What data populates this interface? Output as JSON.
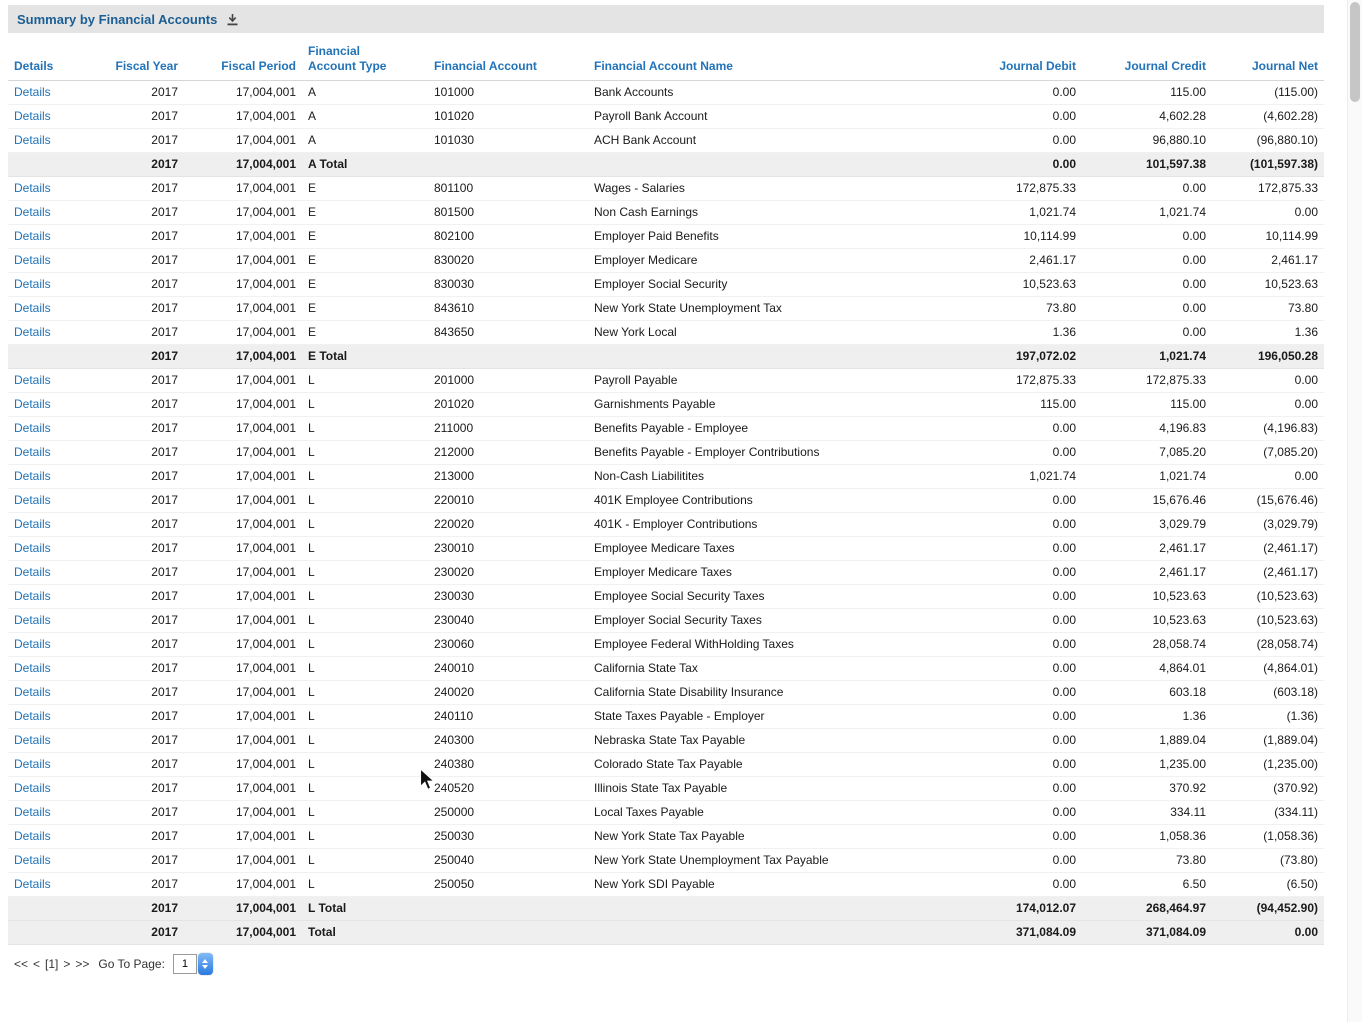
{
  "title": "Summary by Financial Accounts",
  "table": {
    "columns": [
      "Details",
      "Fiscal Year",
      "Fiscal Period",
      "Financial Account Type",
      "Financial Account",
      "Financial Account Name",
      "Journal Debit",
      "Journal Credit",
      "Journal Net"
    ],
    "rows": [
      {
        "details": "Details",
        "fiscal_year": "2017",
        "fiscal_period": "17,004,001",
        "account_type": "A",
        "account": "101000",
        "account_name": "Bank Accounts",
        "debit": "0.00",
        "credit": "115.00",
        "net": "(115.00)"
      },
      {
        "details": "Details",
        "fiscal_year": "2017",
        "fiscal_period": "17,004,001",
        "account_type": "A",
        "account": "101020",
        "account_name": "Payroll Bank Account",
        "debit": "0.00",
        "credit": "4,602.28",
        "net": "(4,602.28)"
      },
      {
        "details": "Details",
        "fiscal_year": "2017",
        "fiscal_period": "17,004,001",
        "account_type": "A",
        "account": "101030",
        "account_name": "ACH Bank Account",
        "debit": "0.00",
        "credit": "96,880.10",
        "net": "(96,880.10)"
      },
      {
        "total": true,
        "fiscal_year": "2017",
        "fiscal_period": "17,004,001",
        "account_type": "A Total",
        "debit": "0.00",
        "credit": "101,597.38",
        "net": "(101,597.38)"
      },
      {
        "details": "Details",
        "fiscal_year": "2017",
        "fiscal_period": "17,004,001",
        "account_type": "E",
        "account": "801100",
        "account_name": "Wages - Salaries",
        "debit": "172,875.33",
        "credit": "0.00",
        "net": "172,875.33"
      },
      {
        "details": "Details",
        "fiscal_year": "2017",
        "fiscal_period": "17,004,001",
        "account_type": "E",
        "account": "801500",
        "account_name": "Non Cash Earnings",
        "debit": "1,021.74",
        "credit": "1,021.74",
        "net": "0.00"
      },
      {
        "details": "Details",
        "fiscal_year": "2017",
        "fiscal_period": "17,004,001",
        "account_type": "E",
        "account": "802100",
        "account_name": "Employer Paid Benefits",
        "debit": "10,114.99",
        "credit": "0.00",
        "net": "10,114.99"
      },
      {
        "details": "Details",
        "fiscal_year": "2017",
        "fiscal_period": "17,004,001",
        "account_type": "E",
        "account": "830020",
        "account_name": "Employer Medicare",
        "debit": "2,461.17",
        "credit": "0.00",
        "net": "2,461.17"
      },
      {
        "details": "Details",
        "fiscal_year": "2017",
        "fiscal_period": "17,004,001",
        "account_type": "E",
        "account": "830030",
        "account_name": "Employer Social Security",
        "debit": "10,523.63",
        "credit": "0.00",
        "net": "10,523.63"
      },
      {
        "details": "Details",
        "fiscal_year": "2017",
        "fiscal_period": "17,004,001",
        "account_type": "E",
        "account": "843610",
        "account_name": "New York State Unemployment Tax",
        "debit": "73.80",
        "credit": "0.00",
        "net": "73.80"
      },
      {
        "details": "Details",
        "fiscal_year": "2017",
        "fiscal_period": "17,004,001",
        "account_type": "E",
        "account": "843650",
        "account_name": "New York Local",
        "debit": "1.36",
        "credit": "0.00",
        "net": "1.36"
      },
      {
        "total": true,
        "fiscal_year": "2017",
        "fiscal_period": "17,004,001",
        "account_type": "E Total",
        "debit": "197,072.02",
        "credit": "1,021.74",
        "net": "196,050.28"
      },
      {
        "details": "Details",
        "fiscal_year": "2017",
        "fiscal_period": "17,004,001",
        "account_type": "L",
        "account": "201000",
        "account_name": "Payroll Payable",
        "debit": "172,875.33",
        "credit": "172,875.33",
        "net": "0.00"
      },
      {
        "details": "Details",
        "fiscal_year": "2017",
        "fiscal_period": "17,004,001",
        "account_type": "L",
        "account": "201020",
        "account_name": "Garnishments Payable",
        "debit": "115.00",
        "credit": "115.00",
        "net": "0.00"
      },
      {
        "details": "Details",
        "fiscal_year": "2017",
        "fiscal_period": "17,004,001",
        "account_type": "L",
        "account": "211000",
        "account_name": "Benefits Payable - Employee",
        "debit": "0.00",
        "credit": "4,196.83",
        "net": "(4,196.83)"
      },
      {
        "details": "Details",
        "fiscal_year": "2017",
        "fiscal_period": "17,004,001",
        "account_type": "L",
        "account": "212000",
        "account_name": "Benefits Payable - Employer Contributions",
        "debit": "0.00",
        "credit": "7,085.20",
        "net": "(7,085.20)"
      },
      {
        "details": "Details",
        "fiscal_year": "2017",
        "fiscal_period": "17,004,001",
        "account_type": "L",
        "account": "213000",
        "account_name": "Non-Cash Liabilitites",
        "debit": "1,021.74",
        "credit": "1,021.74",
        "net": "0.00"
      },
      {
        "details": "Details",
        "fiscal_year": "2017",
        "fiscal_period": "17,004,001",
        "account_type": "L",
        "account": "220010",
        "account_name": "401K Employee Contributions",
        "debit": "0.00",
        "credit": "15,676.46",
        "net": "(15,676.46)"
      },
      {
        "details": "Details",
        "fiscal_year": "2017",
        "fiscal_period": "17,004,001",
        "account_type": "L",
        "account": "220020",
        "account_name": "401K - Employer Contributions",
        "debit": "0.00",
        "credit": "3,029.79",
        "net": "(3,029.79)"
      },
      {
        "details": "Details",
        "fiscal_year": "2017",
        "fiscal_period": "17,004,001",
        "account_type": "L",
        "account": "230010",
        "account_name": "Employee Medicare Taxes",
        "debit": "0.00",
        "credit": "2,461.17",
        "net": "(2,461.17)"
      },
      {
        "details": "Details",
        "fiscal_year": "2017",
        "fiscal_period": "17,004,001",
        "account_type": "L",
        "account": "230020",
        "account_name": "Employer Medicare Taxes",
        "debit": "0.00",
        "credit": "2,461.17",
        "net": "(2,461.17)"
      },
      {
        "details": "Details",
        "fiscal_year": "2017",
        "fiscal_period": "17,004,001",
        "account_type": "L",
        "account": "230030",
        "account_name": "Employee Social Security Taxes",
        "debit": "0.00",
        "credit": "10,523.63",
        "net": "(10,523.63)"
      },
      {
        "details": "Details",
        "fiscal_year": "2017",
        "fiscal_period": "17,004,001",
        "account_type": "L",
        "account": "230040",
        "account_name": "Employer Social Security Taxes",
        "debit": "0.00",
        "credit": "10,523.63",
        "net": "(10,523.63)"
      },
      {
        "details": "Details",
        "fiscal_year": "2017",
        "fiscal_period": "17,004,001",
        "account_type": "L",
        "account": "230060",
        "account_name": "Employee Federal WithHolding Taxes",
        "debit": "0.00",
        "credit": "28,058.74",
        "net": "(28,058.74)"
      },
      {
        "details": "Details",
        "fiscal_year": "2017",
        "fiscal_period": "17,004,001",
        "account_type": "L",
        "account": "240010",
        "account_name": "California State Tax",
        "debit": "0.00",
        "credit": "4,864.01",
        "net": "(4,864.01)"
      },
      {
        "details": "Details",
        "fiscal_year": "2017",
        "fiscal_period": "17,004,001",
        "account_type": "L",
        "account": "240020",
        "account_name": "California State Disability Insurance",
        "debit": "0.00",
        "credit": "603.18",
        "net": "(603.18)"
      },
      {
        "details": "Details",
        "fiscal_year": "2017",
        "fiscal_period": "17,004,001",
        "account_type": "L",
        "account": "240110",
        "account_name": "State Taxes Payable - Employer",
        "debit": "0.00",
        "credit": "1.36",
        "net": "(1.36)"
      },
      {
        "details": "Details",
        "fiscal_year": "2017",
        "fiscal_period": "17,004,001",
        "account_type": "L",
        "account": "240300",
        "account_name": "Nebraska State Tax Payable",
        "debit": "0.00",
        "credit": "1,889.04",
        "net": "(1,889.04)"
      },
      {
        "details": "Details",
        "fiscal_year": "2017",
        "fiscal_period": "17,004,001",
        "account_type": "L",
        "account": "240380",
        "account_name": "Colorado State Tax Payable",
        "debit": "0.00",
        "credit": "1,235.00",
        "net": "(1,235.00)"
      },
      {
        "details": "Details",
        "fiscal_year": "2017",
        "fiscal_period": "17,004,001",
        "account_type": "L",
        "account": "240520",
        "account_name": "Illinois State Tax Payable",
        "debit": "0.00",
        "credit": "370.92",
        "net": "(370.92)"
      },
      {
        "details": "Details",
        "fiscal_year": "2017",
        "fiscal_period": "17,004,001",
        "account_type": "L",
        "account": "250000",
        "account_name": "Local Taxes Payable",
        "debit": "0.00",
        "credit": "334.11",
        "net": "(334.11)"
      },
      {
        "details": "Details",
        "fiscal_year": "2017",
        "fiscal_period": "17,004,001",
        "account_type": "L",
        "account": "250030",
        "account_name": "New York State Tax Payable",
        "debit": "0.00",
        "credit": "1,058.36",
        "net": "(1,058.36)"
      },
      {
        "details": "Details",
        "fiscal_year": "2017",
        "fiscal_period": "17,004,001",
        "account_type": "L",
        "account": "250040",
        "account_name": "New York State Unemployment Tax Payable",
        "debit": "0.00",
        "credit": "73.80",
        "net": "(73.80)"
      },
      {
        "details": "Details",
        "fiscal_year": "2017",
        "fiscal_period": "17,004,001",
        "account_type": "L",
        "account": "250050",
        "account_name": "New York SDI Payable",
        "debit": "0.00",
        "credit": "6.50",
        "net": "(6.50)"
      },
      {
        "total": true,
        "fiscal_year": "2017",
        "fiscal_period": "17,004,001",
        "account_type": "L Total",
        "debit": "174,012.07",
        "credit": "268,464.97",
        "net": "(94,452.90)"
      },
      {
        "total": true,
        "fiscal_year": "2017",
        "fiscal_period": "17,004,001",
        "account_type": "Total",
        "debit": "371,084.09",
        "credit": "371,084.09",
        "net": "0.00"
      }
    ]
  },
  "pagination": {
    "first": "<<",
    "prev": "<",
    "current": "[1]",
    "next": ">",
    "last": ">>",
    "goto_label": "Go To Page:",
    "value": "1"
  },
  "colors": {
    "link_blue": "#2273b8",
    "title_blue": "#1b5e93",
    "total_row_bg": "#efefef",
    "titlebar_bg": "#e4e4e4"
  }
}
